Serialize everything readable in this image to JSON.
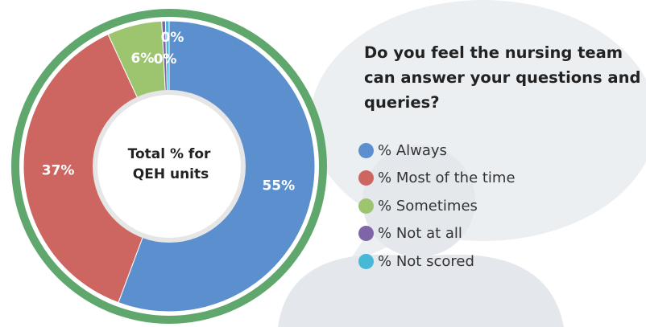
{
  "chart_data": {
    "type": "donut",
    "title": "Do you feel the nursing team can answer your questions and queries?",
    "center_label": [
      "Total % for",
      "QEH units"
    ],
    "categories": [
      "% Always",
      "% Most of the time",
      "% Sometimes",
      "% Not at all",
      "% Not scored"
    ],
    "values": [
      55,
      37,
      6,
      0.4,
      0.4
    ],
    "value_labels": [
      "55%",
      "37%",
      "6%",
      "0%",
      "0%"
    ],
    "colors": [
      "#5b8fce",
      "#cd6660",
      "#9dc56f",
      "#8064a8",
      "#47b8d6"
    ],
    "ring_color": "#5fa76c"
  }
}
